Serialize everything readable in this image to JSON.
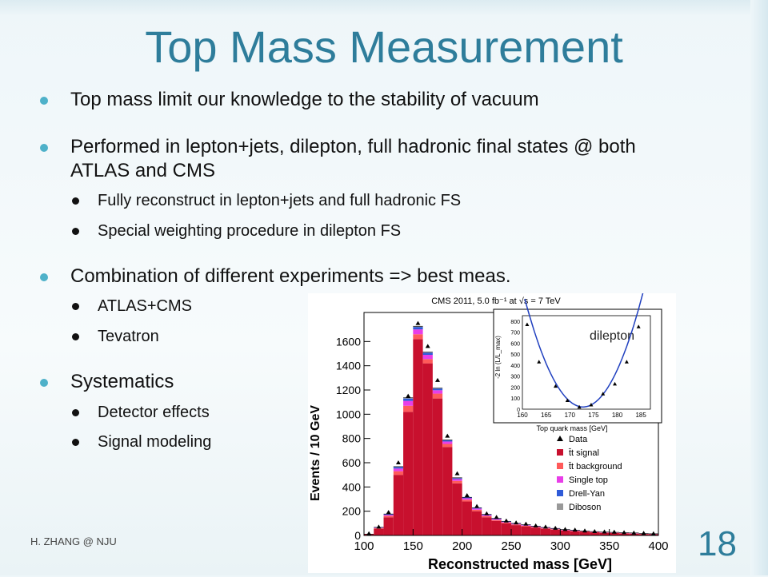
{
  "slide": {
    "title": "Top Mass Measurement",
    "bullets": [
      {
        "text": "Top mass limit our knowledge to the stability of vacuum",
        "sub": []
      },
      {
        "text": "Performed in lepton+jets, dilepton, full hadronic final states @ both ATLAS and CMS",
        "sub": [
          "Fully reconstruct in lepton+jets and full hadronic FS",
          "Special weighting procedure in dilepton FS"
        ]
      },
      {
        "text": "Combination of different experiments => best meas.",
        "sub": [
          "ATLAS+CMS",
          "Tevatron"
        ]
      },
      {
        "text": "Systematics",
        "sub": [
          "Detector effects",
          "Signal modeling"
        ]
      }
    ],
    "footer": "H. ZHANG @ NJU",
    "page_number": "18",
    "accent_color": "#2e7d9b",
    "bullet_color": "#4eb1c9"
  },
  "chart_data": [
    {
      "type": "bar",
      "title": "CMS 2011, 5.0 fb⁻¹ at √s = 7 TeV",
      "xlabel": "Reconstructed mass [GeV]",
      "ylabel": "Events / 10 GeV",
      "xlim": [
        100,
        400
      ],
      "ylim": [
        0,
        1800
      ],
      "x_ticks": [
        "100",
        "150",
        "200",
        "250",
        "300",
        "350",
        "400"
      ],
      "y_ticks": [
        "0",
        "200",
        "400",
        "600",
        "800",
        "1000",
        "1200",
        "1400",
        "1600"
      ],
      "x": [
        105,
        115,
        125,
        135,
        145,
        155,
        165,
        175,
        185,
        195,
        205,
        215,
        225,
        235,
        245,
        255,
        265,
        275,
        285,
        295,
        305,
        315,
        325,
        335,
        345,
        355,
        365,
        375,
        385,
        395
      ],
      "series": [
        {
          "name": "t̄t signal",
          "color": "#c8102e",
          "values": [
            10,
            55,
            150,
            500,
            1020,
            1620,
            1420,
            1130,
            730,
            430,
            280,
            200,
            150,
            120,
            100,
            85,
            75,
            65,
            55,
            48,
            40,
            35,
            30,
            26,
            22,
            20,
            17,
            15,
            12,
            10
          ]
        },
        {
          "name": "t̄t background",
          "color": "#ff5a5a",
          "values": [
            0,
            5,
            12,
            30,
            50,
            40,
            35,
            40,
            25,
            20,
            15,
            12,
            10,
            8,
            7,
            6,
            5,
            5,
            4,
            4,
            3,
            3,
            3,
            2,
            2,
            2,
            2,
            2,
            1,
            1
          ]
        },
        {
          "name": "Single top",
          "color": "#e83ee8",
          "values": [
            1,
            4,
            8,
            22,
            40,
            40,
            35,
            28,
            20,
            15,
            12,
            10,
            8,
            7,
            6,
            5,
            5,
            4,
            4,
            3,
            3,
            3,
            2,
            2,
            2,
            2,
            2,
            2,
            1,
            1
          ]
        },
        {
          "name": "Drell-Yan",
          "color": "#2f5bd8",
          "values": [
            0,
            2,
            5,
            12,
            20,
            20,
            18,
            14,
            10,
            8,
            6,
            5,
            4,
            4,
            3,
            3,
            3,
            2,
            2,
            2,
            2,
            2,
            1,
            1,
            1,
            1,
            1,
            1,
            1,
            1
          ]
        },
        {
          "name": "Diboson",
          "color": "#999999",
          "values": [
            0,
            1,
            2,
            4,
            6,
            6,
            5,
            4,
            3,
            3,
            2,
            2,
            2,
            2,
            1,
            1,
            1,
            1,
            1,
            1,
            1,
            1,
            1,
            1,
            1,
            1,
            1,
            1,
            1,
            1
          ]
        },
        {
          "name": "Data",
          "color": "#000000",
          "values": [
            15,
            70,
            190,
            600,
            1150,
            1750,
            1560,
            1280,
            820,
            510,
            330,
            240,
            180,
            150,
            120,
            105,
            95,
            80,
            70,
            60,
            50,
            45,
            38,
            33,
            30,
            28,
            24,
            21,
            18,
            15
          ]
        }
      ],
      "legend": [
        "Data",
        "t̄t signal",
        "t̄t background",
        "Single top",
        "Drell-Yan",
        "Diboson"
      ],
      "legend_position": "bottom-right"
    },
    {
      "type": "scatter",
      "label": "dilepton",
      "xlabel": "Top quark mass [GeV]",
      "ylabel": "-2 ln (L/L_max)",
      "xlim": [
        160,
        187
      ],
      "ylim": [
        0,
        850
      ],
      "x_ticks": [
        "160",
        "165",
        "170",
        "175",
        "180",
        "185"
      ],
      "y_ticks": [
        "0",
        "100",
        "200",
        "300",
        "400",
        "500",
        "600",
        "700",
        "800"
      ],
      "x": [
        161,
        163.5,
        167,
        169.5,
        172,
        174.5,
        177,
        179.5,
        182,
        184.5
      ],
      "y": [
        770,
        430,
        210,
        80,
        20,
        40,
        140,
        230,
        430,
        750
      ]
    }
  ]
}
